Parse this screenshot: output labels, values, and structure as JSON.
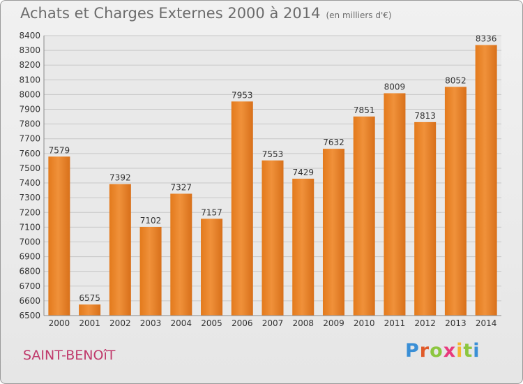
{
  "chart_data": {
    "type": "bar",
    "title": "Achats et Charges Externes 2000 à 2014",
    "subtitle": "(en milliers d'€)",
    "categories": [
      "2000",
      "2001",
      "2002",
      "2003",
      "2004",
      "2005",
      "2006",
      "2007",
      "2008",
      "2009",
      "2010",
      "2011",
      "2012",
      "2013",
      "2014"
    ],
    "values": [
      7579,
      6575,
      7392,
      7102,
      7327,
      7157,
      7953,
      7553,
      7429,
      7632,
      7851,
      8009,
      7813,
      8052,
      8336
    ],
    "ylim": [
      6500,
      8400
    ],
    "ytick_step": 100,
    "grid": true,
    "bar_color": "#f0913a"
  },
  "footer": {
    "place": "SAINT-BENOîT",
    "logo_letters": [
      "P",
      "r",
      "o",
      "x",
      "i",
      "t",
      "i"
    ],
    "logo_colors": [
      "#3a8fd6",
      "#e05a2a",
      "#8cc63f",
      "#e8397d",
      "#f5b731",
      "#8cc63f",
      "#3a8fd6"
    ]
  }
}
